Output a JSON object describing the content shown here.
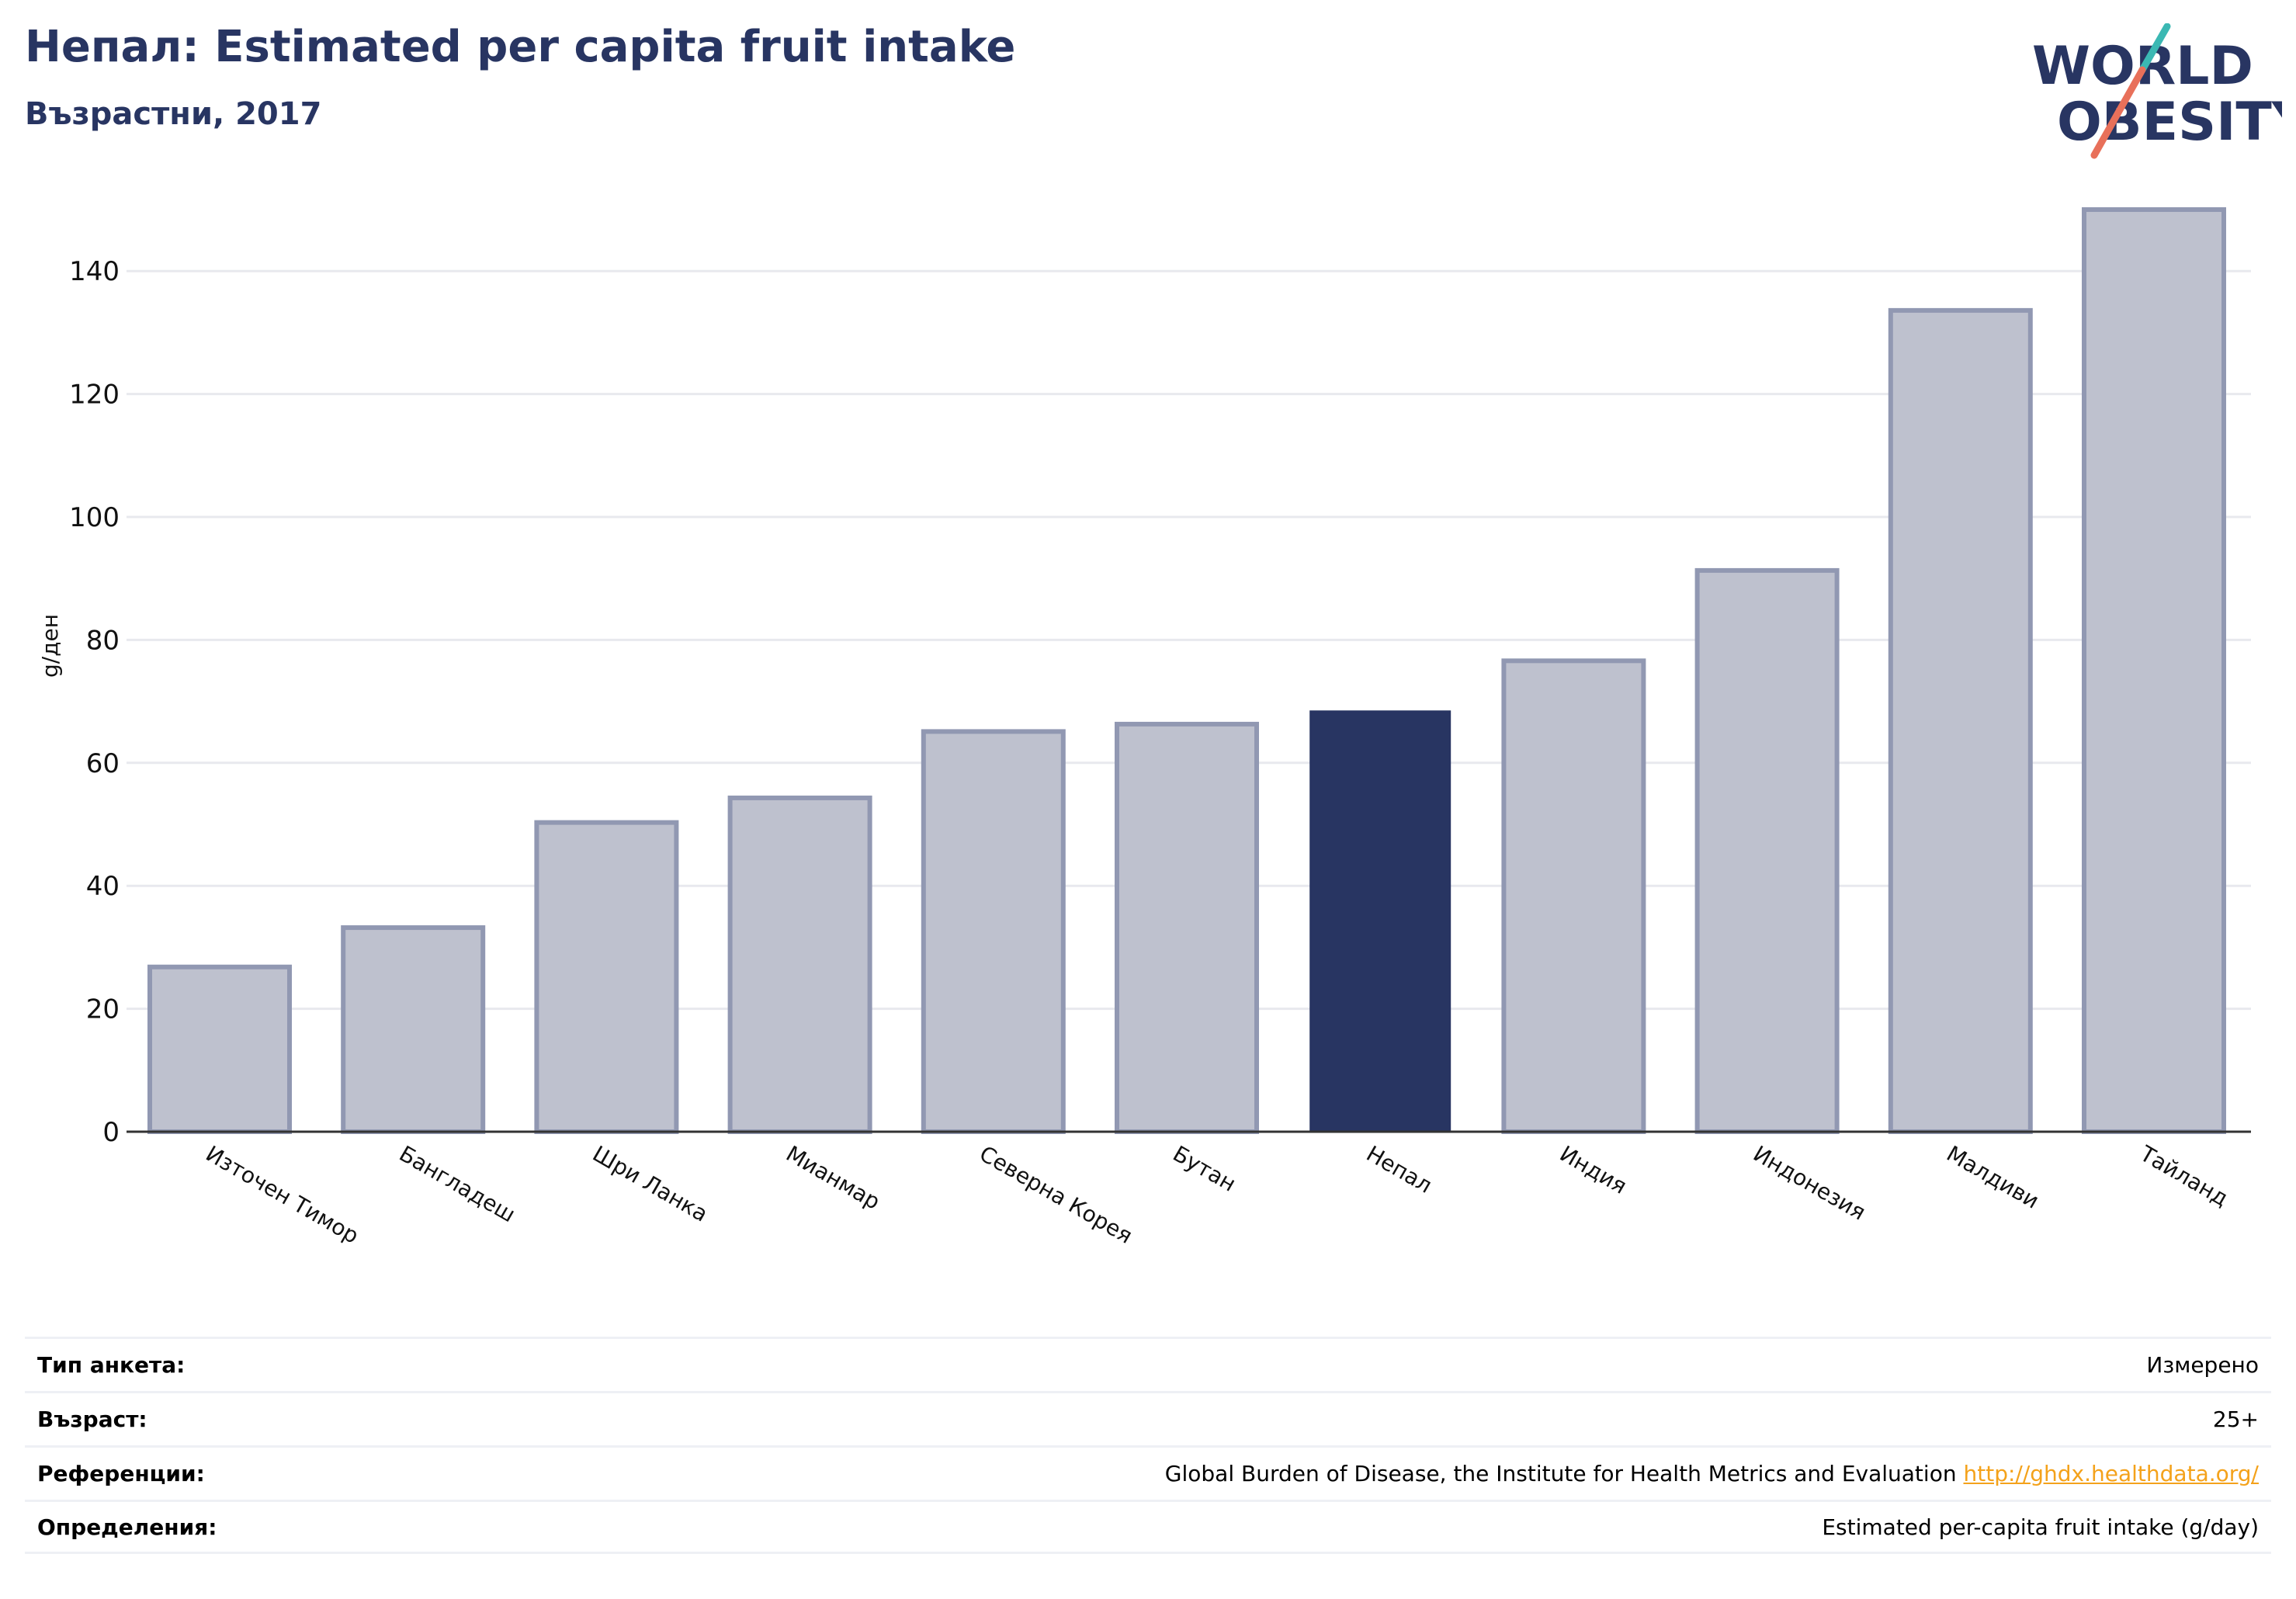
{
  "header": {
    "title": "Непал: Estimated per capita fruit intake",
    "subtitle": "Възрастни, 2017"
  },
  "logo": {
    "line1": "WORLD",
    "line2": "OBESITY",
    "accent_teal": "#3bb8b3",
    "accent_red": "#e8705a",
    "text_color": "#283562"
  },
  "colors": {
    "highlight_bar": "#283562",
    "other_bar_fill": "#bec1ce",
    "other_bar_stroke": "#9198b2",
    "grid": "#e8e9ee",
    "baseline": "#333333"
  },
  "chart_data": {
    "type": "bar",
    "title": "Непал: Estimated per capita fruit intake",
    "subtitle": "Възрастни, 2017",
    "ylabel": "g/ден",
    "xlabel": "",
    "ylim": [
      0,
      150
    ],
    "yticks": [
      0,
      20,
      40,
      60,
      80,
      100,
      120,
      140
    ],
    "grid": true,
    "highlight": "Непал",
    "categories": [
      "Източен Тимор",
      "Бангладеш",
      "Шри Ланка",
      "Мианмар",
      "Северна Корея",
      "Бутан",
      "Непал",
      "Индия",
      "Индонезия",
      "Малдиви",
      "Тайланд"
    ],
    "values": [
      26.8,
      33.2,
      50.3,
      54.3,
      65.1,
      66.3,
      68.4,
      76.6,
      91.3,
      133.6,
      150.0
    ]
  },
  "metadata": [
    {
      "label": "Тип анкета:",
      "value": "Измерено",
      "link": ""
    },
    {
      "label": "Възраст:",
      "value": "25+",
      "link": ""
    },
    {
      "label": "Референции:",
      "value": "Global Burden of Disease, the Institute for Health Metrics and Evaluation",
      "link": "http://ghdx.healthdata.org/"
    },
    {
      "label": "Определения:",
      "value": "Estimated per-capita fruit intake (g/day)",
      "link": ""
    }
  ]
}
